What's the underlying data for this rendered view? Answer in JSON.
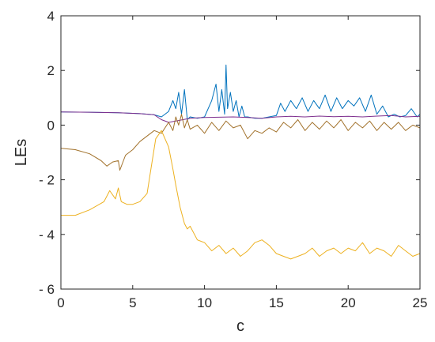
{
  "chart_data": {
    "type": "line",
    "xlabel": "c",
    "ylabel": "LEs",
    "xlim": [
      0,
      25
    ],
    "ylim": [
      -6,
      4
    ],
    "xticks": [
      0,
      5,
      10,
      15,
      20,
      25
    ],
    "yticks": [
      -6,
      -4,
      -2,
      0,
      2,
      4
    ],
    "xtick_labels": [
      "0",
      "5",
      "10",
      "15",
      "20",
      "25"
    ],
    "ytick_labels": [
      "- 6",
      "- 4",
      "- 2",
      "0",
      "2",
      "4"
    ],
    "grid": false,
    "legend": "none",
    "series": [
      {
        "color": "#0072BD",
        "x": [
          0,
          2,
          4,
          5.5,
          6.5,
          7,
          7.5,
          7.8,
          8,
          8.2,
          8.4,
          8.6,
          8.8,
          9,
          9.5,
          10,
          10.5,
          10.8,
          11,
          11.2,
          11.4,
          11.5,
          11.6,
          11.8,
          12,
          12.2,
          12.4,
          12.6,
          12.8,
          13,
          13.5,
          14,
          14.5,
          15,
          15.3,
          15.6,
          16,
          16.4,
          16.8,
          17.2,
          17.6,
          18,
          18.4,
          18.8,
          19.2,
          19.6,
          20,
          20.4,
          20.8,
          21.2,
          21.6,
          22,
          22.4,
          22.8,
          23.2,
          23.6,
          24,
          24.4,
          24.8,
          25
        ],
        "y": [
          0.48,
          0.47,
          0.45,
          0.42,
          0.38,
          0.3,
          0.5,
          0.9,
          0.6,
          1.2,
          0.4,
          1.3,
          0.2,
          0.3,
          0.25,
          0.3,
          0.9,
          1.5,
          0.5,
          1.3,
          0.4,
          2.2,
          0.6,
          1.2,
          0.5,
          0.9,
          0.3,
          0.7,
          0.3,
          0.3,
          0.25,
          0.25,
          0.3,
          0.35,
          0.8,
          0.5,
          0.9,
          0.6,
          1.0,
          0.5,
          0.9,
          0.6,
          1.1,
          0.5,
          1.0,
          0.6,
          0.9,
          0.7,
          1.0,
          0.5,
          1.1,
          0.4,
          0.7,
          0.3,
          0.4,
          0.3,
          0.35,
          0.6,
          0.3,
          0.4
        ]
      },
      {
        "color": "#7E2F8E",
        "x": [
          0,
          2,
          4,
          5.5,
          6.5,
          7,
          7.5,
          8,
          8.5,
          9,
          10,
          12,
          13,
          14,
          15,
          16,
          17,
          18,
          19,
          20,
          21,
          22,
          23,
          24,
          25
        ],
        "y": [
          0.48,
          0.47,
          0.45,
          0.42,
          0.38,
          0.2,
          0.1,
          0.15,
          0.2,
          0.25,
          0.28,
          0.3,
          0.28,
          0.25,
          0.3,
          0.32,
          0.3,
          0.33,
          0.31,
          0.32,
          0.3,
          0.33,
          0.35,
          0.3,
          0.32
        ]
      },
      {
        "color": "#A2722C",
        "x": [
          0,
          1,
          2,
          2.8,
          3.2,
          3.6,
          4,
          4.1,
          4.5,
          5,
          5.5,
          6,
          6.5,
          7,
          7.5,
          7.8,
          8,
          8.2,
          8.4,
          8.6,
          8.8,
          9,
          9.5,
          10,
          10.5,
          11,
          11.5,
          12,
          12.5,
          13,
          13.5,
          14,
          14.5,
          15,
          15.5,
          16,
          16.5,
          17,
          17.5,
          18,
          18.5,
          19,
          19.5,
          20,
          20.5,
          21,
          21.5,
          22,
          22.5,
          23,
          23.5,
          24,
          24.5,
          25
        ],
        "y": [
          -0.85,
          -0.9,
          -1.05,
          -1.3,
          -1.5,
          -1.35,
          -1.3,
          -1.65,
          -1.1,
          -0.9,
          -0.6,
          -0.4,
          -0.2,
          -0.3,
          0.1,
          -0.2,
          0.3,
          0.0,
          0.4,
          -0.1,
          0.2,
          -0.15,
          0.0,
          -0.3,
          0.1,
          -0.2,
          0.15,
          -0.1,
          0.0,
          -0.5,
          -0.2,
          -0.3,
          -0.1,
          -0.25,
          0.1,
          -0.1,
          0.2,
          -0.2,
          0.1,
          -0.15,
          0.15,
          -0.1,
          0.2,
          -0.2,
          0.1,
          -0.1,
          0.15,
          -0.2,
          0.1,
          -0.15,
          0.1,
          -0.2,
          0.0,
          -0.1
        ]
      },
      {
        "color": "#EDB120",
        "x": [
          0,
          1,
          2,
          3,
          3.4,
          3.8,
          4,
          4.2,
          4.6,
          5,
          5.5,
          6,
          6.3,
          6.6,
          7,
          7.5,
          7.8,
          8,
          8.3,
          8.6,
          8.8,
          9,
          9.5,
          10,
          10.5,
          11,
          11.5,
          12,
          12.5,
          13,
          13.5,
          14,
          14.5,
          15,
          15.5,
          16,
          16.5,
          17,
          17.5,
          18,
          18.5,
          19,
          19.5,
          20,
          20.5,
          21,
          21.5,
          22,
          22.5,
          23,
          23.5,
          24,
          24.5,
          25
        ],
        "y": [
          -3.3,
          -3.3,
          -3.1,
          -2.8,
          -2.4,
          -2.7,
          -2.3,
          -2.8,
          -2.9,
          -2.9,
          -2.8,
          -2.5,
          -1.5,
          -0.5,
          -0.2,
          -0.8,
          -1.6,
          -2.2,
          -3.0,
          -3.6,
          -3.8,
          -3.7,
          -4.2,
          -4.3,
          -4.6,
          -4.4,
          -4.7,
          -4.5,
          -4.8,
          -4.6,
          -4.3,
          -4.2,
          -4.4,
          -4.7,
          -4.8,
          -4.9,
          -4.8,
          -4.7,
          -4.5,
          -4.8,
          -4.6,
          -4.5,
          -4.7,
          -4.5,
          -4.6,
          -4.3,
          -4.7,
          -4.5,
          -4.6,
          -4.8,
          -4.4,
          -4.6,
          -4.8,
          -4.7
        ]
      }
    ]
  }
}
